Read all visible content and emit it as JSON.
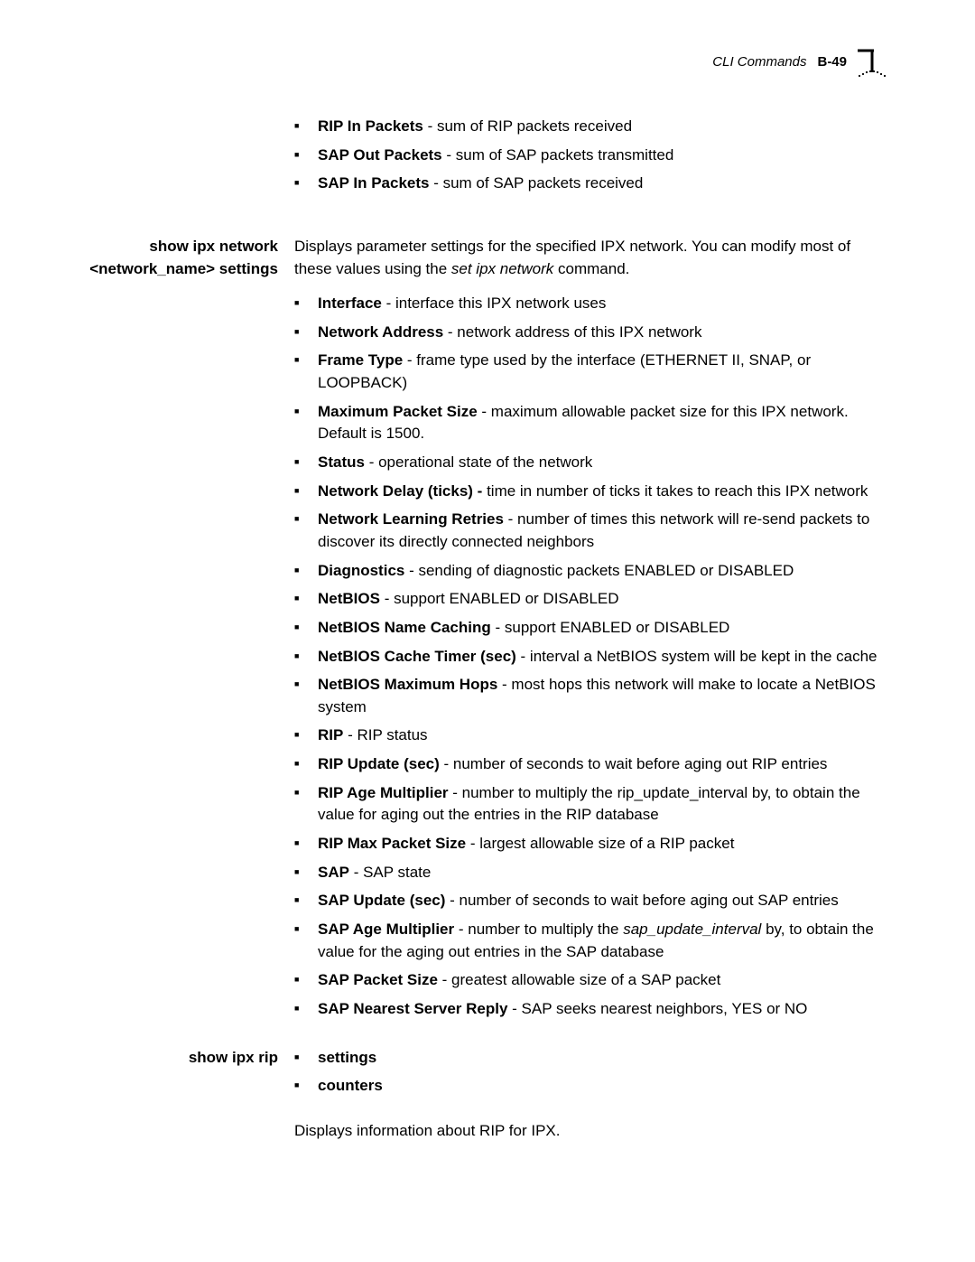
{
  "header": {
    "title": "CLI Commands",
    "page_number": "B-49"
  },
  "top_bullets": [
    {
      "bold": "RIP In Packets",
      "rest": " - sum of RIP packets received"
    },
    {
      "bold": "SAP Out Packets",
      "rest": " - sum of SAP packets transmitted"
    },
    {
      "bold": "SAP In Packets",
      "rest": " - sum of SAP packets received"
    }
  ],
  "section1": {
    "heading": "show ipx network <network_name> settings",
    "intro_part1": "Displays parameter settings for the specified IPX network. You can modify most of these values using the ",
    "intro_italic": "set ipx network",
    "intro_part2": " command.",
    "bullets": [
      {
        "bold": "Interface",
        "rest": " - interface this IPX network uses"
      },
      {
        "bold": "Network Address",
        "rest": " - network address of this IPX network"
      },
      {
        "bold": "Frame Type",
        "rest": " - frame type used by the interface (ETHERNET II, SNAP, or LOOPBACK)"
      },
      {
        "bold": "Maximum Packet Size",
        "rest": " - maximum allowable packet size for this IPX network. Default is 1500."
      },
      {
        "bold": "Status",
        "rest": " - operational state of the network"
      },
      {
        "bold": "Network Delay (ticks) - ",
        "rest": "time in number of ticks it takes to reach this IPX network"
      },
      {
        "bold": "Network Learning Retries",
        "rest": " - number of times this network will re-send packets to discover its directly connected neighbors"
      },
      {
        "bold": "Diagnostics",
        "rest": " - sending of diagnostic packets ENABLED or DISABLED"
      },
      {
        "bold": "NetBIOS",
        "rest": " - support ENABLED or DISABLED"
      },
      {
        "bold": "NetBIOS Name Caching",
        "rest": " - support ENABLED or DISABLED"
      },
      {
        "bold": "NetBIOS Cache Timer (sec)",
        "rest": " - interval a NetBIOS system will be kept in the cache"
      },
      {
        "bold": "NetBIOS Maximum Hops",
        "rest": " - most hops this network will make to locate a NetBIOS system"
      },
      {
        "bold": "RIP",
        "rest": " - RIP status"
      },
      {
        "bold": "RIP Update (sec)",
        "rest": " - number of seconds to wait before aging out RIP entries"
      },
      {
        "bold": "RIP Age Multiplier",
        "rest": " - number to multiply the rip_update_interval by, to obtain the value for aging out the entries in the RIP database"
      },
      {
        "bold": "RIP Max Packet Size",
        "rest": " - largest allowable size of a RIP packet"
      },
      {
        "bold": "SAP",
        "rest": " - SAP state"
      },
      {
        "bold": "SAP Update (sec)",
        "rest": " - number of seconds to wait before aging out SAP entries"
      },
      {
        "bold": "SAP Age Multiplier",
        "rest": " - number to multiply the ",
        "italic": "sap_update_interval",
        "rest2": " by, to obtain the value for the aging out entries in the SAP database"
      },
      {
        "bold": "SAP Packet Size",
        "rest": " - greatest allowable size of a SAP packet"
      },
      {
        "bold": "SAP Nearest Server Reply",
        "rest": " - SAP seeks nearest neighbors, YES or NO"
      }
    ]
  },
  "section2": {
    "heading": "show ipx rip",
    "bullets": [
      {
        "bold": "settings",
        "rest": ""
      },
      {
        "bold": "counters",
        "rest": ""
      }
    ],
    "footer_text": "Displays information about RIP for IPX."
  }
}
